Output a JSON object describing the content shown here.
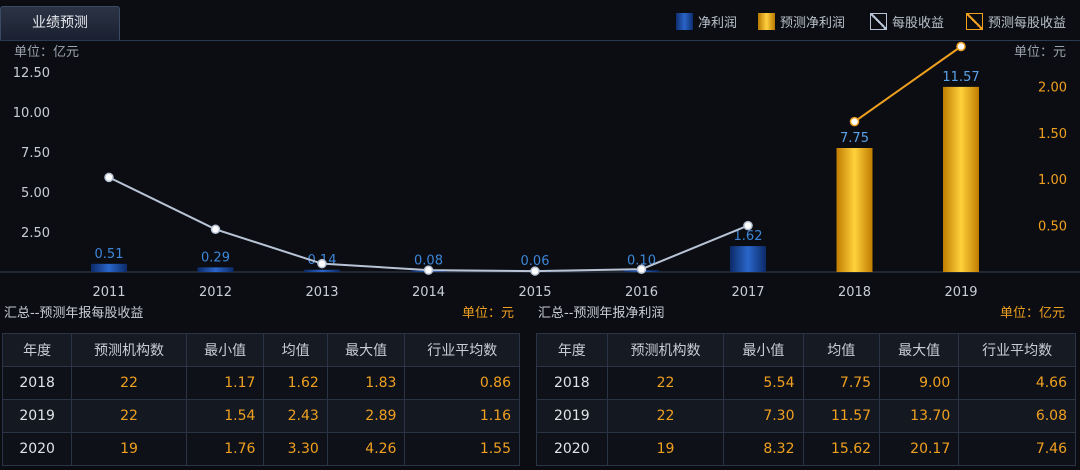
{
  "tab": {
    "label": "业绩预测"
  },
  "legend": [
    {
      "label": "净利润",
      "kind": "bar",
      "color": "#1a4fa8"
    },
    {
      "label": "预测净利润",
      "kind": "bar",
      "color": "#f0a800"
    },
    {
      "label": "每股收益",
      "kind": "line",
      "color": "#b8c4d6"
    },
    {
      "label": "预测每股收益",
      "kind": "line",
      "color": "#f0a020"
    }
  ],
  "chart_data": {
    "type": "bar",
    "categories": [
      "2011",
      "2012",
      "2013",
      "2014",
      "2015",
      "2016",
      "2017",
      "2018",
      "2019"
    ],
    "left_unit": "单位：亿元",
    "right_unit": "单位：元",
    "left_ticks": [
      "2.50",
      "5.00",
      "7.50",
      "10.00",
      "12.50"
    ],
    "right_ticks": [
      "0.50",
      "1.00",
      "1.50",
      "2.00"
    ],
    "ylim_left": [
      0,
      14.5
    ],
    "ylim_right": [
      0,
      2.5
    ],
    "series": [
      {
        "name": "净利润",
        "values": [
          0.51,
          0.29,
          0.14,
          0.08,
          0.06,
          0.1,
          1.62,
          null,
          null
        ],
        "labels": [
          "0.51",
          "0.29",
          "0.14",
          "0.08",
          "0.06",
          "0.10",
          "1.62",
          "",
          ""
        ],
        "color": "#1a4fa8"
      },
      {
        "name": "预测净利润",
        "values": [
          null,
          null,
          null,
          null,
          null,
          null,
          null,
          7.75,
          11.57
        ],
        "labels": [
          "",
          "",
          "",
          "",
          "",
          "",
          "",
          "7.75",
          "11.57"
        ],
        "color": "#f0a800"
      },
      {
        "name": "每股收益",
        "values": [
          1.02,
          0.46,
          0.09,
          0.02,
          0.01,
          0.03,
          0.5,
          null,
          null
        ],
        "color": "#b8c4d6"
      },
      {
        "name": "预测每股收益",
        "values": [
          null,
          null,
          null,
          null,
          null,
          null,
          null,
          1.62,
          2.43
        ],
        "color": "#f0a020"
      }
    ]
  },
  "eps_section": {
    "title": "汇总--预测年报每股收益",
    "unit": "单位：元",
    "headers": [
      "年度",
      "预测机构数",
      "最小值",
      "均值",
      "最大值",
      "行业平均数"
    ],
    "rows": [
      [
        "2018",
        "22",
        "1.17",
        "1.62",
        "1.83",
        "0.86"
      ],
      [
        "2019",
        "22",
        "1.54",
        "2.43",
        "2.89",
        "1.16"
      ],
      [
        "2020",
        "19",
        "1.76",
        "3.30",
        "4.26",
        "1.55"
      ]
    ]
  },
  "profit_section": {
    "title": "汇总--预测年报净利润",
    "unit": "单位：亿元",
    "headers": [
      "年度",
      "预测机构数",
      "最小值",
      "均值",
      "最大值",
      "行业平均数"
    ],
    "rows": [
      [
        "2018",
        "22",
        "5.54",
        "7.75",
        "9.00",
        "4.66"
      ],
      [
        "2019",
        "22",
        "7.30",
        "11.57",
        "13.70",
        "6.08"
      ],
      [
        "2020",
        "19",
        "8.32",
        "15.62",
        "20.17",
        "7.46"
      ]
    ]
  }
}
